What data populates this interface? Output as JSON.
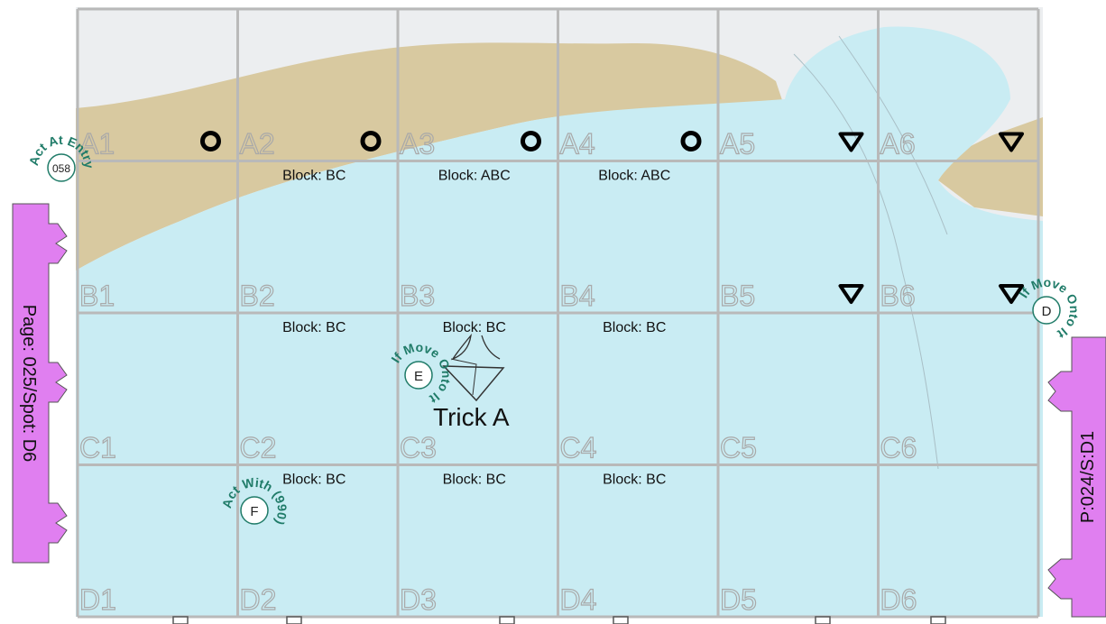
{
  "colors": {
    "sand": "#d8c9a0",
    "water": "#c9ecf3",
    "sky": "#eceef0",
    "grid": "#b9b9b9",
    "tab": "#e07ff0",
    "badge": "#1f7b68",
    "marker": "#000000"
  },
  "grid_labels": [
    [
      "A1",
      "A2",
      "A3",
      "A4",
      "A5",
      "A6"
    ],
    [
      "B1",
      "B2",
      "B3",
      "B4",
      "B5",
      "B6"
    ],
    [
      "C1",
      "C2",
      "C3",
      "C4",
      "C5",
      "C6"
    ],
    [
      "D1",
      "D2",
      "D3",
      "D4",
      "D5",
      "D6"
    ]
  ],
  "blocks": [
    {
      "cell": "A2",
      "text": "Block: BC"
    },
    {
      "cell": "A3",
      "text": "Block: ABC"
    },
    {
      "cell": "A4",
      "text": "Block: ABC"
    },
    {
      "cell": "B2",
      "text": "Block: BC"
    },
    {
      "cell": "B3",
      "text": "Block: BC"
    },
    {
      "cell": "B4",
      "text": "Block: BC"
    },
    {
      "cell": "C2",
      "text": "Block: BC"
    },
    {
      "cell": "C3",
      "text": "Block: BC"
    },
    {
      "cell": "C4",
      "text": "Block: BC"
    }
  ],
  "markers": {
    "circles": [
      "A1",
      "A2",
      "A3",
      "A4"
    ],
    "triangles": [
      "A5",
      "A6",
      "B5",
      "B6"
    ],
    "circle_icon": "circle-icon",
    "triangle_icon": "triangle-down-icon"
  },
  "trick": {
    "label": "Trick A",
    "icon": "trick-arrow-icon"
  },
  "badges": [
    {
      "id": "entry",
      "center_text": "058",
      "ring_text": "Act At Entry"
    },
    {
      "id": "d",
      "center_text": "D",
      "ring_text": "If Move Onto It"
    },
    {
      "id": "e",
      "center_text": "E",
      "ring_text": "If Move Onto It"
    },
    {
      "id": "f",
      "center_text": "F",
      "ring_text": "Act With (990)"
    }
  ],
  "nav": {
    "left_tab": "Page: 025/Spot: D6",
    "right_tab": "P:024/S:D1"
  }
}
